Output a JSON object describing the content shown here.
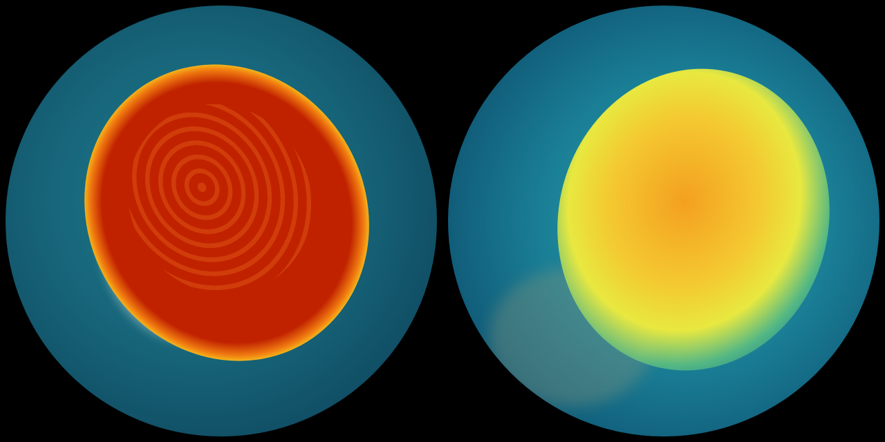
{
  "globes": [
    {
      "name": "left-globe",
      "colors": {
        "core": "#c02200",
        "rim": "#f5d020",
        "ocean": "#1f7d90"
      }
    },
    {
      "name": "right-globe",
      "colors": {
        "core": "#f4c830",
        "ocean": "#1a7f96"
      }
    }
  ]
}
